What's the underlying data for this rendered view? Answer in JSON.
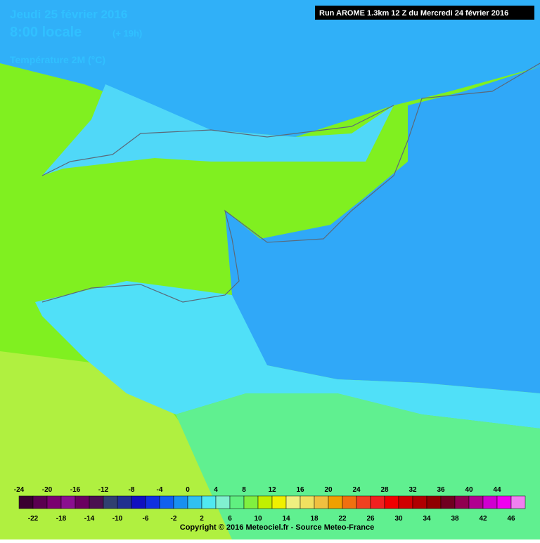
{
  "header": {
    "date": "Jeudi 25 février 2016",
    "time": "8:00 locale",
    "offset": "(+ 19h)",
    "parameter": "Température 2M (°C)",
    "run": "Run AROME 1.3km 12 Z du Mercredi 24 février 2016"
  },
  "legend": {
    "labels": [
      -24,
      -22,
      -20,
      -18,
      -16,
      -14,
      -12,
      -10,
      -8,
      -6,
      -4,
      -2,
      0,
      2,
      4,
      6,
      8,
      10,
      12,
      14,
      16,
      18,
      20,
      22,
      24,
      26,
      28,
      30,
      32,
      34,
      36,
      38,
      40,
      42,
      44,
      46
    ],
    "colors": [
      "#3a0030",
      "#5a0050",
      "#7a0070",
      "#8a1090",
      "#6a0060",
      "#4a1050",
      "#304070",
      "#203090",
      "#1010c0",
      "#1030e0",
      "#1060f0",
      "#1890f0",
      "#30c0f0",
      "#50e8f0",
      "#80f0d0",
      "#60f080",
      "#80f040",
      "#c0f000",
      "#f0f000",
      "#f0f080",
      "#f0e060",
      "#f0c040",
      "#f0a000",
      "#f07010",
      "#f04020",
      "#f02020",
      "#f00000",
      "#d00000",
      "#b00000",
      "#900000",
      "#700020",
      "#900050",
      "#b00090",
      "#d000d0",
      "#f000f0",
      "#f080f0"
    ]
  },
  "footer": {
    "copyright": "Copyright © 2016 Meteociel.fr - Source Meteo-France"
  }
}
